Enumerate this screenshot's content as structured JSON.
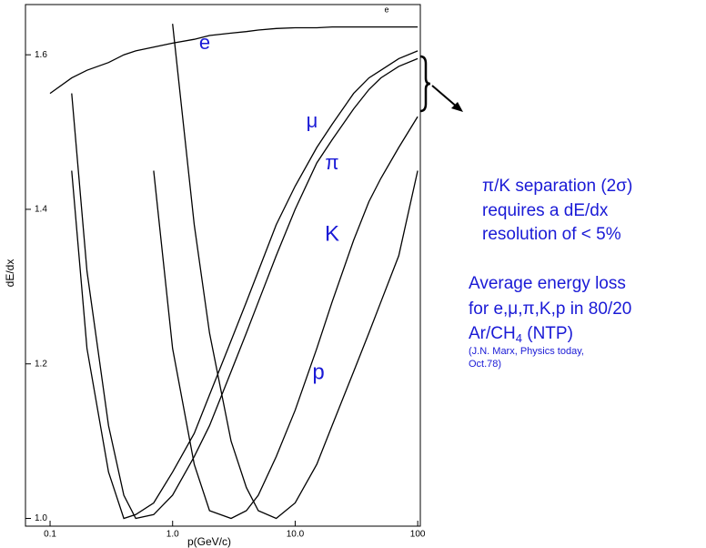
{
  "chart_data": {
    "type": "line",
    "x_label": "p(GeV/c)",
    "y_label": "dE/dx",
    "log_x": true,
    "x": [
      0.1,
      0.15,
      0.2,
      0.3,
      0.4,
      0.5,
      0.7,
      1,
      1.5,
      2,
      3,
      4,
      5,
      7,
      10,
      15,
      20,
      30,
      40,
      50,
      70,
      100
    ],
    "series": [
      {
        "name": "e",
        "color": "#000000",
        "values": [
          1.55,
          1.57,
          1.58,
          1.59,
          1.6,
          1.605,
          1.61,
          1.615,
          1.62,
          1.625,
          1.628,
          1.63,
          1.632,
          1.634,
          1.635,
          1.635,
          1.636,
          1.636,
          1.636,
          1.636,
          1.636,
          1.636
        ]
      },
      {
        "name": "μ",
        "color": "#000000",
        "values": [
          null,
          1.45,
          1.22,
          1.06,
          1.0,
          1.005,
          1.02,
          1.06,
          1.11,
          1.16,
          1.23,
          1.28,
          1.32,
          1.38,
          1.43,
          1.48,
          1.51,
          1.55,
          1.57,
          1.58,
          1.595,
          1.605
        ]
      },
      {
        "name": "π",
        "color": "#000000",
        "values": [
          null,
          1.55,
          1.32,
          1.12,
          1.03,
          1.0,
          1.005,
          1.03,
          1.08,
          1.12,
          1.19,
          1.24,
          1.28,
          1.34,
          1.4,
          1.46,
          1.49,
          1.53,
          1.555,
          1.57,
          1.585,
          1.595
        ]
      },
      {
        "name": "K",
        "color": "#000000",
        "values": [
          null,
          null,
          null,
          null,
          null,
          null,
          1.45,
          1.22,
          1.07,
          1.01,
          1.0,
          1.01,
          1.03,
          1.08,
          1.14,
          1.22,
          1.28,
          1.36,
          1.41,
          1.44,
          1.48,
          1.52
        ]
      },
      {
        "name": "p",
        "color": "#000000",
        "values": [
          null,
          null,
          null,
          null,
          null,
          null,
          null,
          1.64,
          1.38,
          1.24,
          1.1,
          1.04,
          1.01,
          1.0,
          1.02,
          1.07,
          1.12,
          1.19,
          1.24,
          1.28,
          1.34,
          1.45
        ]
      }
    ],
    "label_color": "#1a1ad6",
    "xlim": [
      0.063,
      105
    ],
    "ylim": [
      0.99,
      1.665
    ],
    "xticks": [
      0.1,
      {
        "value": 1,
        "label": "1.0"
      },
      {
        "value": 10,
        "label": "10.0"
      },
      100
    ],
    "yticks": [
      {
        "value": 1,
        "label": "1.0"
      },
      1.2,
      1.4,
      1.6
    ],
    "annotations": [
      "π/K separation (2σ)",
      "requires a dE/dx",
      "resolution of  < 5%",
      "Average energy loss",
      "for e,μ,π,K,p in 80/20",
      {
        "text": "Ar/CH",
        "subscript": "4",
        "text_after": " (NTP)"
      },
      "(J.N. Marx, Physics today,",
      "Oct.78)"
    ]
  }
}
